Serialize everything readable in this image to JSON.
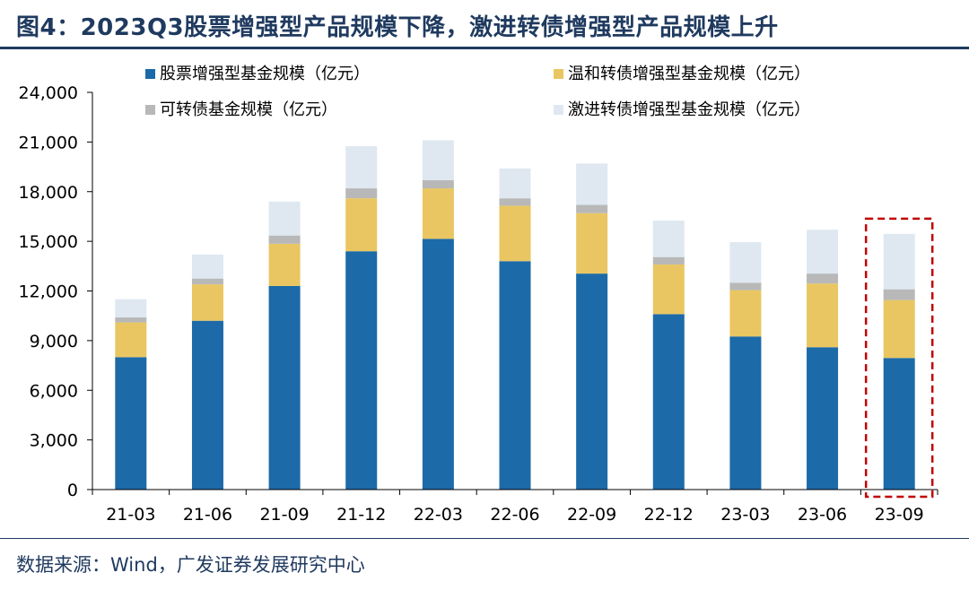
{
  "title": "图4：2023Q3股票增强型产品规模下降，激进转债增强型产品规模上升",
  "source": "数据来源：Wind，广发证券发展研究中心",
  "chart_data": {
    "type": "bar",
    "stacked": true,
    "categories": [
      "21-03",
      "21-06",
      "21-09",
      "21-12",
      "22-03",
      "22-06",
      "22-09",
      "22-12",
      "23-03",
      "23-06",
      "23-09"
    ],
    "series": [
      {
        "name": "股票增强型基金规模（亿元）",
        "color": "#1c6aa8",
        "values": [
          8000,
          10200,
          12300,
          14400,
          15150,
          13800,
          13050,
          10600,
          9250,
          8600,
          7950
        ]
      },
      {
        "name": "温和转债增强型基金规模（亿元）",
        "color": "#e9c662",
        "values": [
          2100,
          2200,
          2550,
          3200,
          3050,
          3350,
          3650,
          3000,
          2800,
          3850,
          3500
        ]
      },
      {
        "name": "可转债基金规模（亿元）",
        "color": "#b8b8b8",
        "values": [
          300,
          350,
          500,
          600,
          500,
          450,
          500,
          450,
          450,
          600,
          650
        ]
      },
      {
        "name": "激进转债增强型基金规模（亿元）",
        "color": "#dfe8f1",
        "values": [
          1100,
          1450,
          2050,
          2550,
          2400,
          1800,
          2500,
          2200,
          2450,
          2650,
          3350
        ]
      }
    ],
    "yticks": [
      "0",
      "3,000",
      "6,000",
      "9,000",
      "12,000",
      "15,000",
      "18,000",
      "21,000",
      "24,000"
    ],
    "ylim": [
      0,
      24000
    ],
    "legend_position": "top",
    "highlight_category": "23-09",
    "highlight_color": "#c00000"
  }
}
